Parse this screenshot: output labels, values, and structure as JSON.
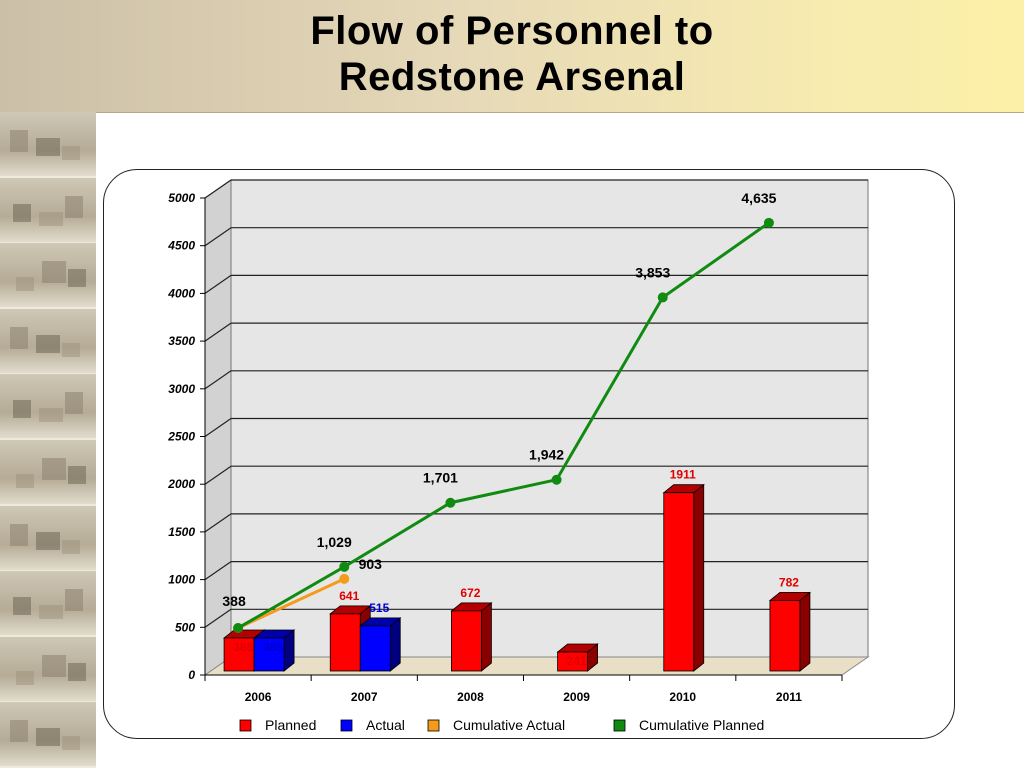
{
  "title": {
    "line1": "Flow of Personnel to",
    "line2": "Redstone Arsenal"
  },
  "left_strip": {
    "icons": [
      "warehouse-photo-icon",
      "building-photo-icon",
      "rocket-photo-icon",
      "aircraft-photo-icon",
      "officers-photo-icon",
      "nasa-sign-photo-icon",
      "soldiers-photo-icon",
      "missile-photo-icon",
      "helicopter-photo-icon",
      "truck-photo-icon"
    ]
  },
  "chart_data": {
    "type": "bar",
    "categories": [
      "2006",
      "2007",
      "2008",
      "2009",
      "2010",
      "2011"
    ],
    "ylim": [
      0,
      5000
    ],
    "yticks": [
      "0",
      "500",
      "1000",
      "1500",
      "2000",
      "2500",
      "3000",
      "3500",
      "4000",
      "4500",
      "5000"
    ],
    "grid": true,
    "legend_position": "bottom",
    "series": [
      {
        "name": "Planned",
        "kind": "bar",
        "color": "#ff0000",
        "label_color": "#e00000",
        "values": [
          388,
          641,
          672,
          241,
          1911,
          782
        ],
        "labels": [
          "388",
          "641",
          "672",
          "241",
          "1911",
          "782"
        ]
      },
      {
        "name": "Actual",
        "kind": "bar",
        "color": "#0000ff",
        "label_color": "#0000cc",
        "values": [
          388,
          515,
          null,
          null,
          null,
          null
        ],
        "labels": [
          "388",
          "515",
          "",
          "",
          "",
          ""
        ]
      },
      {
        "name": "Cumulative Actual",
        "kind": "line",
        "color": "#f59a1b",
        "label_color": "#000000",
        "values": [
          388,
          903,
          null,
          null,
          null,
          null
        ],
        "labels": [
          "388",
          "903",
          "",
          "",
          "",
          ""
        ]
      },
      {
        "name": "Cumulative Planned",
        "kind": "line",
        "color": "#108a10",
        "label_color": "#000000",
        "values": [
          388,
          1029,
          1701,
          1942,
          3853,
          4635
        ],
        "labels": [
          "",
          "1,029",
          "1,701",
          "1,942",
          "3,853",
          "4,635"
        ]
      }
    ]
  }
}
